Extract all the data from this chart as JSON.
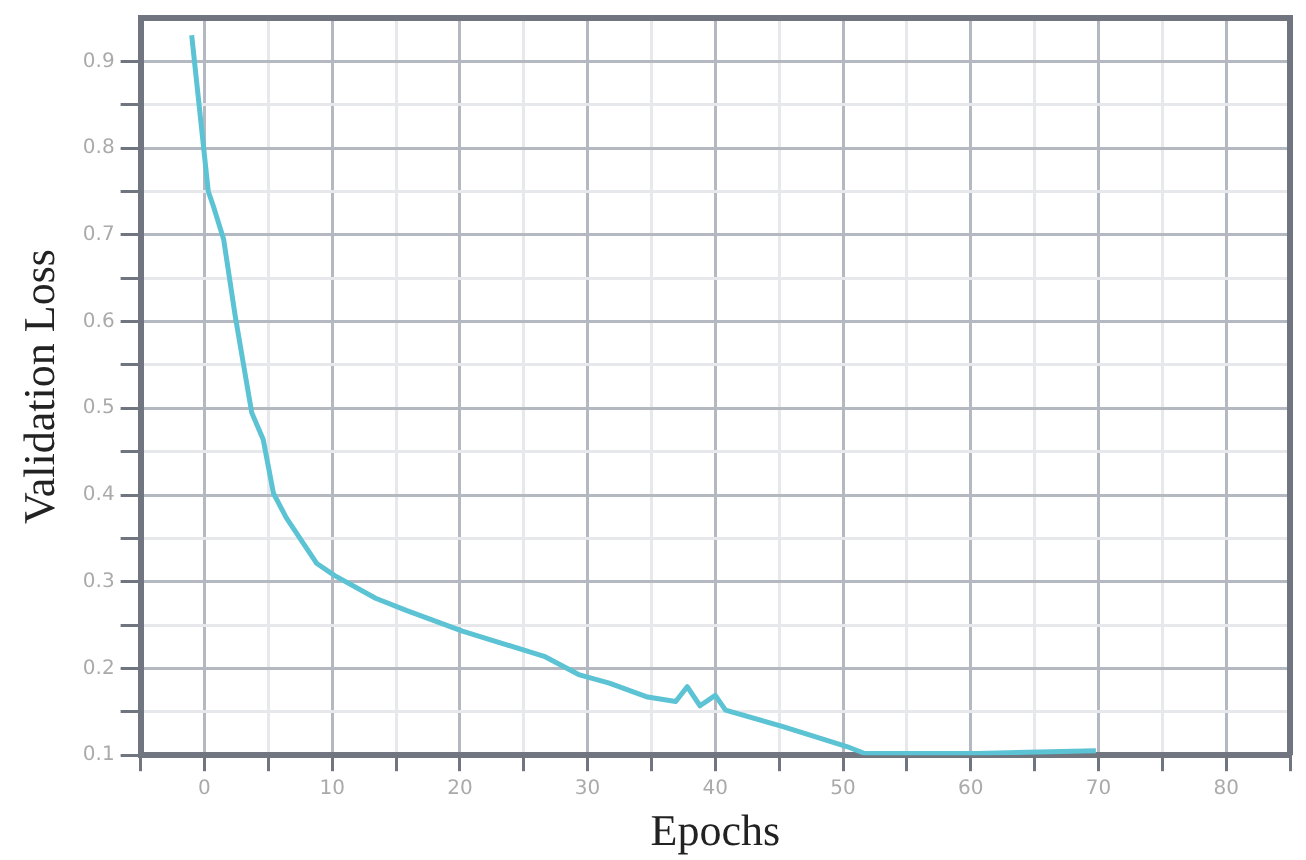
{
  "chart_data": {
    "type": "line",
    "xlabel": "Epochs",
    "ylabel": "Validation Loss",
    "x": [
      -1,
      0.3,
      0.7,
      1.5,
      2.4,
      3.7,
      4.6,
      5.4,
      6.4,
      8.8,
      10.2,
      13.4,
      15.8,
      20.2,
      26.6,
      29.3,
      31.7,
      34.7,
      36.9,
      37.8,
      38.8,
      40,
      40.8,
      45.3,
      50.3,
      51.7,
      60.5,
      69.8
    ],
    "series": [
      {
        "color": "#5bc3d3",
        "values": [
          0.93,
          0.75,
          0.733,
          0.695,
          0.607,
          0.495,
          0.464,
          0.402,
          0.374,
          0.321,
          0.307,
          0.281,
          0.267,
          0.243,
          0.214,
          0.193,
          0.183,
          0.167,
          0.162,
          0.179,
          0.157,
          0.169,
          0.152,
          0.133,
          0.11,
          0.102,
          0.102,
          0.105
        ]
      }
    ],
    "xlim": [
      -5,
      85
    ],
    "xticks": [
      {
        "value": -5,
        "label": null
      },
      0,
      {
        "value": 5,
        "label": null
      },
      10,
      {
        "value": 15,
        "label": null
      },
      20,
      {
        "value": 25,
        "label": null
      },
      30,
      {
        "value": 35,
        "label": null
      },
      40,
      {
        "value": 45,
        "label": null
      },
      50,
      {
        "value": 55,
        "label": null
      },
      60,
      {
        "value": 65,
        "label": null
      },
      70,
      {
        "value": 75,
        "label": null
      },
      80,
      {
        "value": 85,
        "label": null
      }
    ],
    "ylim": [
      0.1,
      0.95
    ],
    "yticks": [
      0.1,
      {
        "value": 0.15,
        "label": null
      },
      0.2,
      {
        "value": 0.25,
        "label": null
      },
      0.3,
      {
        "value": 0.35,
        "label": null
      },
      0.4,
      {
        "value": 0.45,
        "label": null
      },
      0.5,
      {
        "value": 0.55,
        "label": null
      },
      0.6,
      {
        "value": 0.65,
        "label": null
      },
      0.7,
      {
        "value": 0.75,
        "label": null
      },
      0.8,
      {
        "value": 0.85,
        "label": null
      },
      0.9
    ],
    "grid": true,
    "legend": false,
    "marker": "none",
    "line_style": "solid"
  }
}
